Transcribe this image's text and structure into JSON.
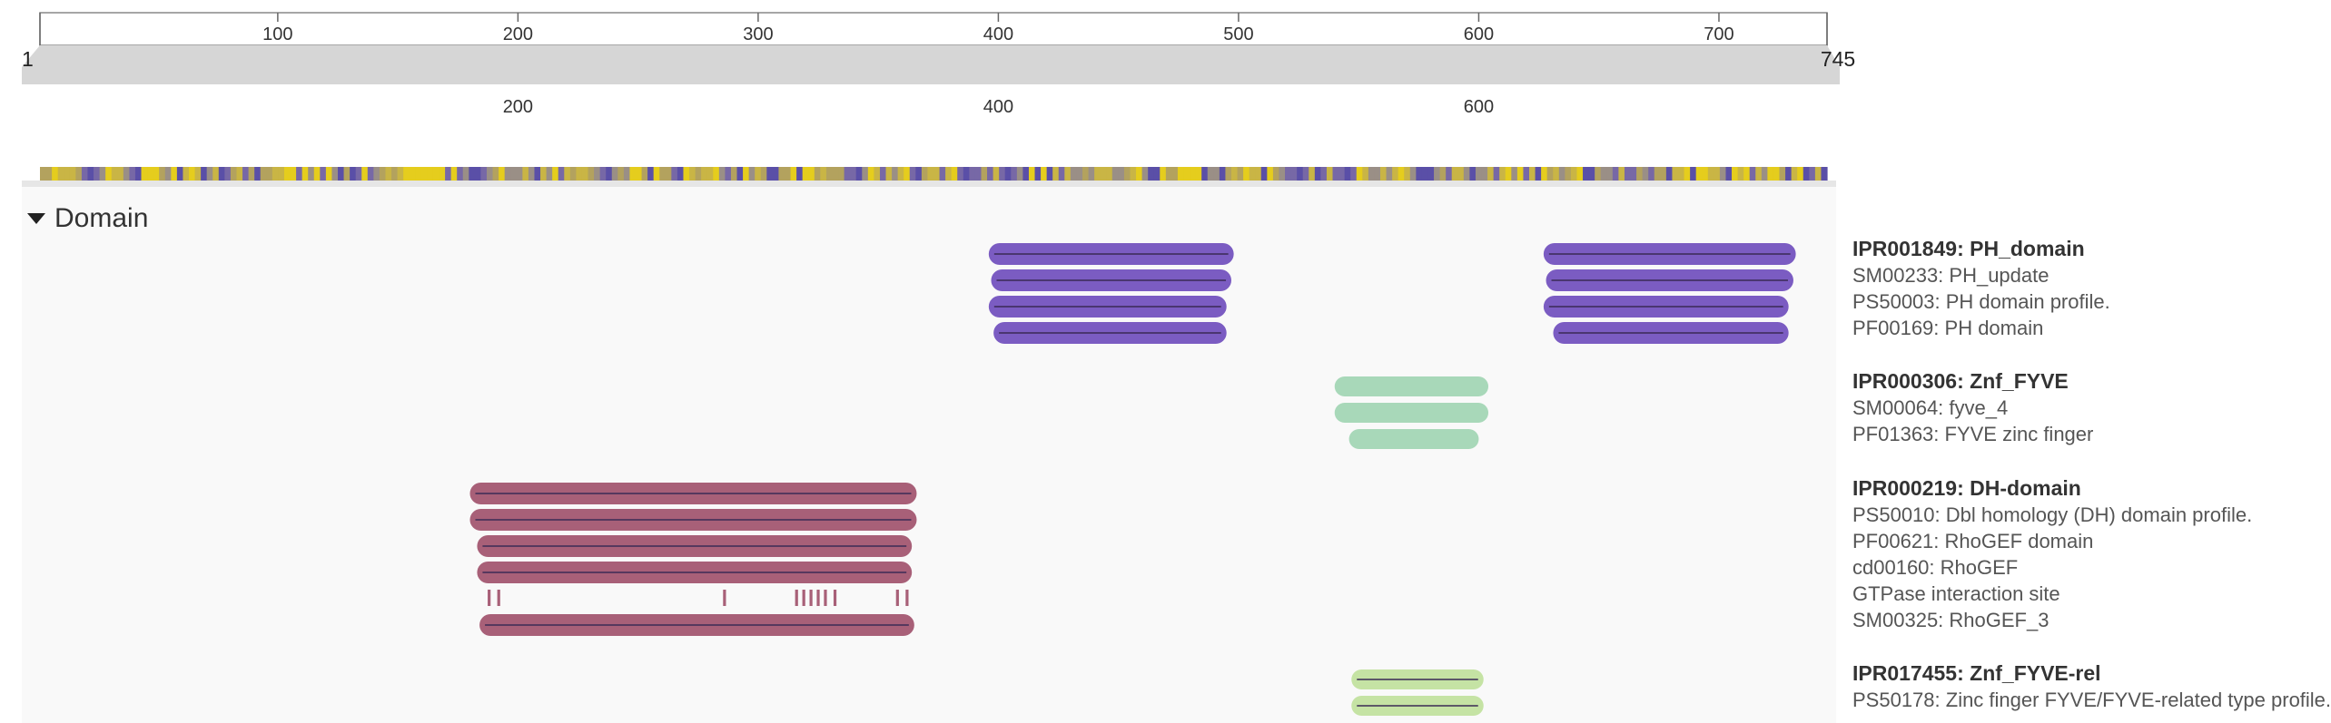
{
  "ruler": {
    "start_label": "1",
    "end_label": "745",
    "ticks": [
      {
        "value": 100,
        "label": "100"
      },
      {
        "value": 200,
        "label": "200"
      },
      {
        "value": 300,
        "label": "300"
      },
      {
        "value": 400,
        "label": "400"
      },
      {
        "value": 500,
        "label": "500"
      },
      {
        "value": 600,
        "label": "600"
      },
      {
        "value": 700,
        "label": "700"
      }
    ],
    "zoom_ticks": [
      {
        "value": 200,
        "label": "200"
      },
      {
        "value": 400,
        "label": "400"
      },
      {
        "value": 600,
        "label": "600"
      }
    ],
    "length": 745,
    "range": [
      1,
      745
    ]
  },
  "conservation": {
    "palette": [
      "#5a4fa7",
      "#7768a6",
      "#9a8f86",
      "#b3a25e",
      "#c9b545",
      "#e5cd1d"
    ],
    "segments": 300
  },
  "section": {
    "title": "Domain",
    "expanded": true
  },
  "entries": [
    {
      "id": "IPR001849",
      "title": "IPR001849: PH_domain",
      "color": "#7b5cc2",
      "members": [
        {
          "label": "SM00233: PH_update",
          "kind": "bar",
          "ranges": [
            [
              396,
              498
            ],
            [
              627,
              732
            ]
          ]
        },
        {
          "label": "PS50003: PH domain profile.",
          "kind": "bar",
          "ranges": [
            [
              397,
              497
            ],
            [
              628,
              731
            ]
          ]
        },
        {
          "label": "PF00169: PH domain",
          "kind": "bar",
          "ranges": [
            [
              396,
              495
            ],
            [
              627,
              729
            ]
          ]
        },
        {
          "label": "",
          "kind": "bar",
          "ranges": [
            [
              398,
              495
            ],
            [
              631,
              729
            ]
          ]
        }
      ]
    },
    {
      "id": "IPR000306",
      "title": "IPR000306: Znf_FYVE",
      "color": "#a8d8b9",
      "members": [
        {
          "label": "SM00064: fyve_4",
          "kind": "bar",
          "ranges": [
            [
              540,
              604
            ]
          ]
        },
        {
          "label": "PF01363: FYVE zinc finger",
          "kind": "bar",
          "ranges": [
            [
              540,
              604
            ]
          ]
        },
        {
          "label": "",
          "kind": "bar",
          "ranges": [
            [
              546,
              600
            ]
          ]
        }
      ]
    },
    {
      "id": "IPR000219",
      "title": "IPR000219: DH-domain",
      "color": "#a86078",
      "members": [
        {
          "label": "PS50010: Dbl homology (DH) domain profile.",
          "kind": "bar",
          "ranges": [
            [
              180,
              366
            ]
          ]
        },
        {
          "label": "PF00621: RhoGEF domain",
          "kind": "bar",
          "ranges": [
            [
              180,
              366
            ]
          ]
        },
        {
          "label": "cd00160: RhoGEF",
          "kind": "bar",
          "ranges": [
            [
              183,
              364
            ]
          ]
        },
        {
          "label": "",
          "kind": "bar",
          "ranges": [
            [
              183,
              364
            ]
          ]
        },
        {
          "label": "GTPase interaction site",
          "kind": "sites",
          "positions": [
            188,
            192,
            286,
            316,
            319,
            322,
            325,
            328,
            332,
            358,
            362
          ]
        },
        {
          "label": "SM00325: RhoGEF_3",
          "kind": "bar",
          "ranges": [
            [
              184,
              365
            ]
          ]
        }
      ]
    },
    {
      "id": "IPR017455",
      "title": "IPR017455: Znf_FYVE-rel",
      "color": "#c5e3a4",
      "members": [
        {
          "label": "PS50178: Zinc finger FYVE/FYVE-related type profile.",
          "kind": "bar",
          "ranges": [
            [
              547,
              602
            ]
          ]
        },
        {
          "label": "",
          "kind": "bar",
          "ranges": [
            [
              547,
              602
            ]
          ]
        }
      ]
    }
  ]
}
